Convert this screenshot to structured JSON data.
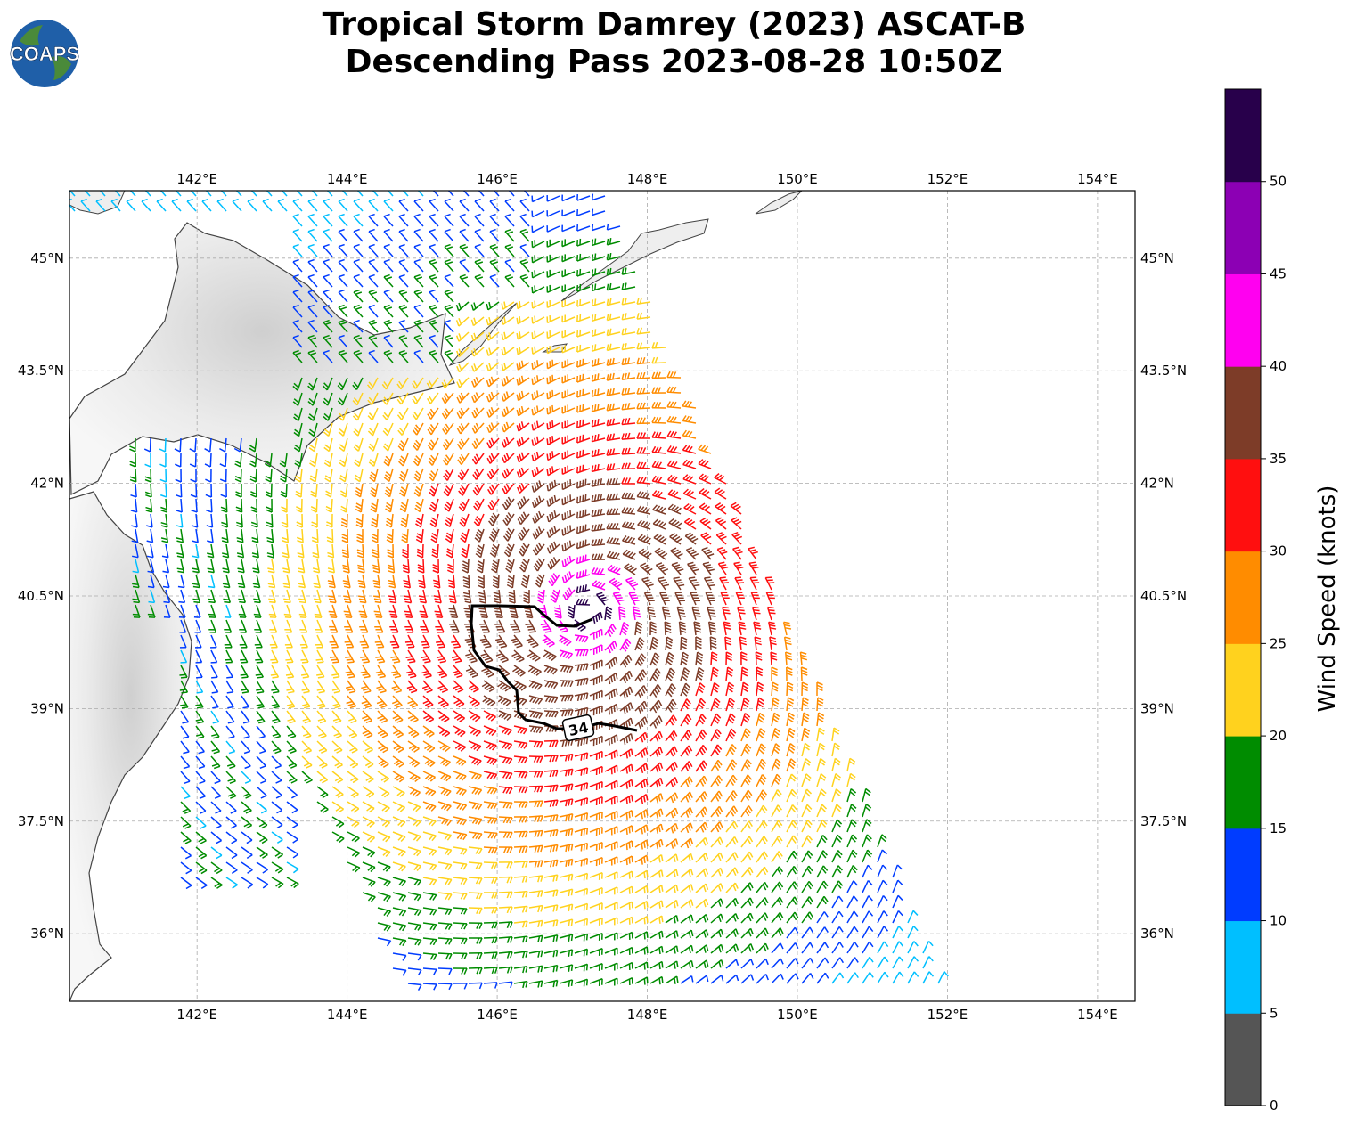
{
  "header": {
    "logo_text": "COAPS",
    "title_line1": "Tropical Storm Damrey (2023) ASCAT-B",
    "title_line2": "Descending Pass 2023-08-28 10:50Z"
  },
  "map": {
    "lon_ticks": [
      "142°E",
      "144°E",
      "146°E",
      "148°E",
      "150°E",
      "152°E",
      "154°E"
    ],
    "lat_ticks": [
      "45°N",
      "43.5°N",
      "42°N",
      "40.5°N",
      "39°N",
      "37.5°N",
      "36°N"
    ],
    "extent": {
      "lon": [
        140.3,
        154.5
      ],
      "lat": [
        35.1,
        45.9
      ]
    },
    "grid": true,
    "contour": {
      "label": "34",
      "units": "knots"
    },
    "storm_center": {
      "lon": 147.2,
      "lat": 40.3
    }
  },
  "colorbar": {
    "label": "Wind Speed (knots)",
    "tick_labels": [
      "0",
      "5",
      "10",
      "15",
      "20",
      "25",
      "30",
      "35",
      "40",
      "45",
      "50"
    ],
    "bins": [
      {
        "range": "0-5",
        "color": "#555555"
      },
      {
        "range": "5-10",
        "color": "#00bfff"
      },
      {
        "range": "10-15",
        "color": "#003cff"
      },
      {
        "range": "15-20",
        "color": "#008c00"
      },
      {
        "range": "20-25",
        "color": "#ffd21e"
      },
      {
        "range": "25-30",
        "color": "#ff8c00"
      },
      {
        "range": "30-35",
        "color": "#ff0f0f"
      },
      {
        "range": "35-40",
        "color": "#7d3c28"
      },
      {
        "range": "40-45",
        "color": "#ff00f0"
      },
      {
        "range": "45-50",
        "color": "#8c00b4"
      },
      {
        "range": "50+",
        "color": "#28004b"
      }
    ]
  }
}
